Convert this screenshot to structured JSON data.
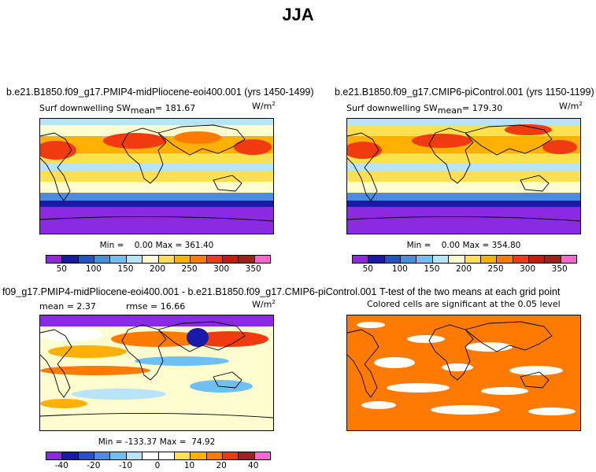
{
  "main_title": "JJA",
  "panels": {
    "p1": {
      "title": "b.e21.B1850.f09_g17.PMIP4-midPliocene-eoi400.001 (yrs 1450-1499)",
      "var": "Surf downwelling SW",
      "mean_label": "mean",
      "mean_value": "= 181.67",
      "units": "W/m",
      "units_sup": "2",
      "minmax": "Min =    0.00 Max = 361.40"
    },
    "p2": {
      "title": "b.e21.B1850.f09_g17.CMIP6-piControl.001 (yrs 1150-1199)",
      "var": "Surf downwelling SW",
      "mean_label": "mean",
      "mean_value": "= 179.30",
      "units": "W/m",
      "units_sup": "2",
      "minmax": "Min =    0.00 Max = 354.80"
    },
    "p3": {
      "title": "f09_g17.PMIP4-midPliocene-eoi400.001 - b.e21.B1850.f09_g17.CMIP6-piControl.001",
      "mean": "mean =   2.37",
      "rmse": "rmse =  16.66",
      "units": "W/m",
      "units_sup": "2",
      "minmax": "Min = -133.37 Max =  74.92"
    },
    "p4": {
      "title": "T-test of the two means at each grid point",
      "subtitle": "Colored cells are significant at the 0.05 level"
    }
  },
  "colorbar_abs": {
    "colors": [
      "#8a2be2",
      "#1a1aa8",
      "#2850c8",
      "#4a8ce0",
      "#6ec0f0",
      "#b8e4f8",
      "#fdfdd0",
      "#ffe050",
      "#ffb000",
      "#ff7a00",
      "#f03a10",
      "#c81818",
      "#a02020",
      "#ff66cc"
    ],
    "ticks": [
      "50",
      "100",
      "150",
      "200",
      "250",
      "300",
      "350"
    ]
  },
  "colorbar_diff": {
    "colors": [
      "#8a2be2",
      "#1a1aa8",
      "#2850c8",
      "#4a8ce0",
      "#6ec0f0",
      "#b8e4f8",
      "#ffffff",
      "#ffffff",
      "#ffe050",
      "#ffb000",
      "#ff7a00",
      "#f03a10",
      "#a02020",
      "#ff66cc"
    ],
    "ticks": [
      "-40",
      "-20",
      "-10",
      "0",
      "10",
      "20",
      "40"
    ]
  },
  "chart_data": [
    {
      "type": "heatmap",
      "title": "b.e21.B1850.f09_g17.PMIP4-midPliocene-eoi400.001 (yrs 1450-1499)",
      "variable": "Surf downwelling SW",
      "units": "W/m^2",
      "mean": 181.67,
      "min": 0.0,
      "max": 361.4,
      "colorbar_levels": [
        25,
        50,
        75,
        100,
        125,
        150,
        175,
        200,
        225,
        250,
        275,
        300,
        325,
        350,
        375
      ]
    },
    {
      "type": "heatmap",
      "title": "b.e21.B1850.f09_g17.CMIP6-piControl.001 (yrs 1150-1199)",
      "variable": "Surf downwelling SW",
      "units": "W/m^2",
      "mean": 179.3,
      "min": 0.0,
      "max": 354.8
    },
    {
      "type": "heatmap",
      "title": "f09_g17.PMIP4-midPliocene-eoi400.001 - b.e21.B1850.f09_g17.CMIP6-piControl.001",
      "units": "W/m^2",
      "mean": 2.37,
      "rmse": 16.66,
      "min": -133.37,
      "max": 74.92
    },
    {
      "type": "heatmap",
      "title": "T-test of the two means at each grid point",
      "subtitle": "Colored cells are significant at the 0.05 level",
      "significance_level": 0.05
    }
  ]
}
